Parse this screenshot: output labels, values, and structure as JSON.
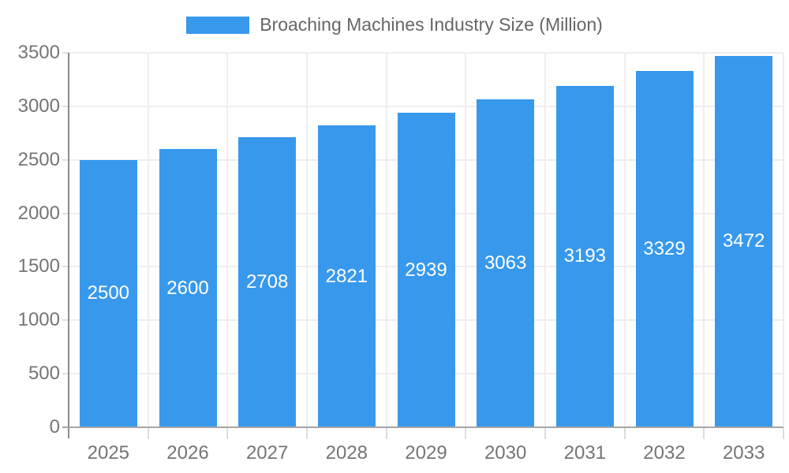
{
  "legend": {
    "label": "Broaching Machines Industry Size (Million)",
    "swatch_color": "#3899ec"
  },
  "chart_data": {
    "type": "bar",
    "title": "Broaching Machines Industry Size (Million)",
    "categories": [
      "2025",
      "2026",
      "2027",
      "2028",
      "2029",
      "2030",
      "2031",
      "2032",
      "2033"
    ],
    "values": [
      2500,
      2600,
      2708,
      2821,
      2939,
      3063,
      3193,
      3329,
      3472
    ],
    "xlabel": "",
    "ylabel": "",
    "ylim": [
      0,
      3500
    ],
    "yticks": [
      0,
      500,
      1000,
      1500,
      2000,
      2500,
      3000,
      3500
    ],
    "grid": true,
    "legend_position": "top-center",
    "bar_color": "#3899ec",
    "bar_label_color": "#ffffff",
    "axis_label_color": "#757575",
    "gridline_color": "#eeeeee",
    "axis_line_color": "#8c8c8c",
    "baseline_color": "#a6a6a6"
  }
}
